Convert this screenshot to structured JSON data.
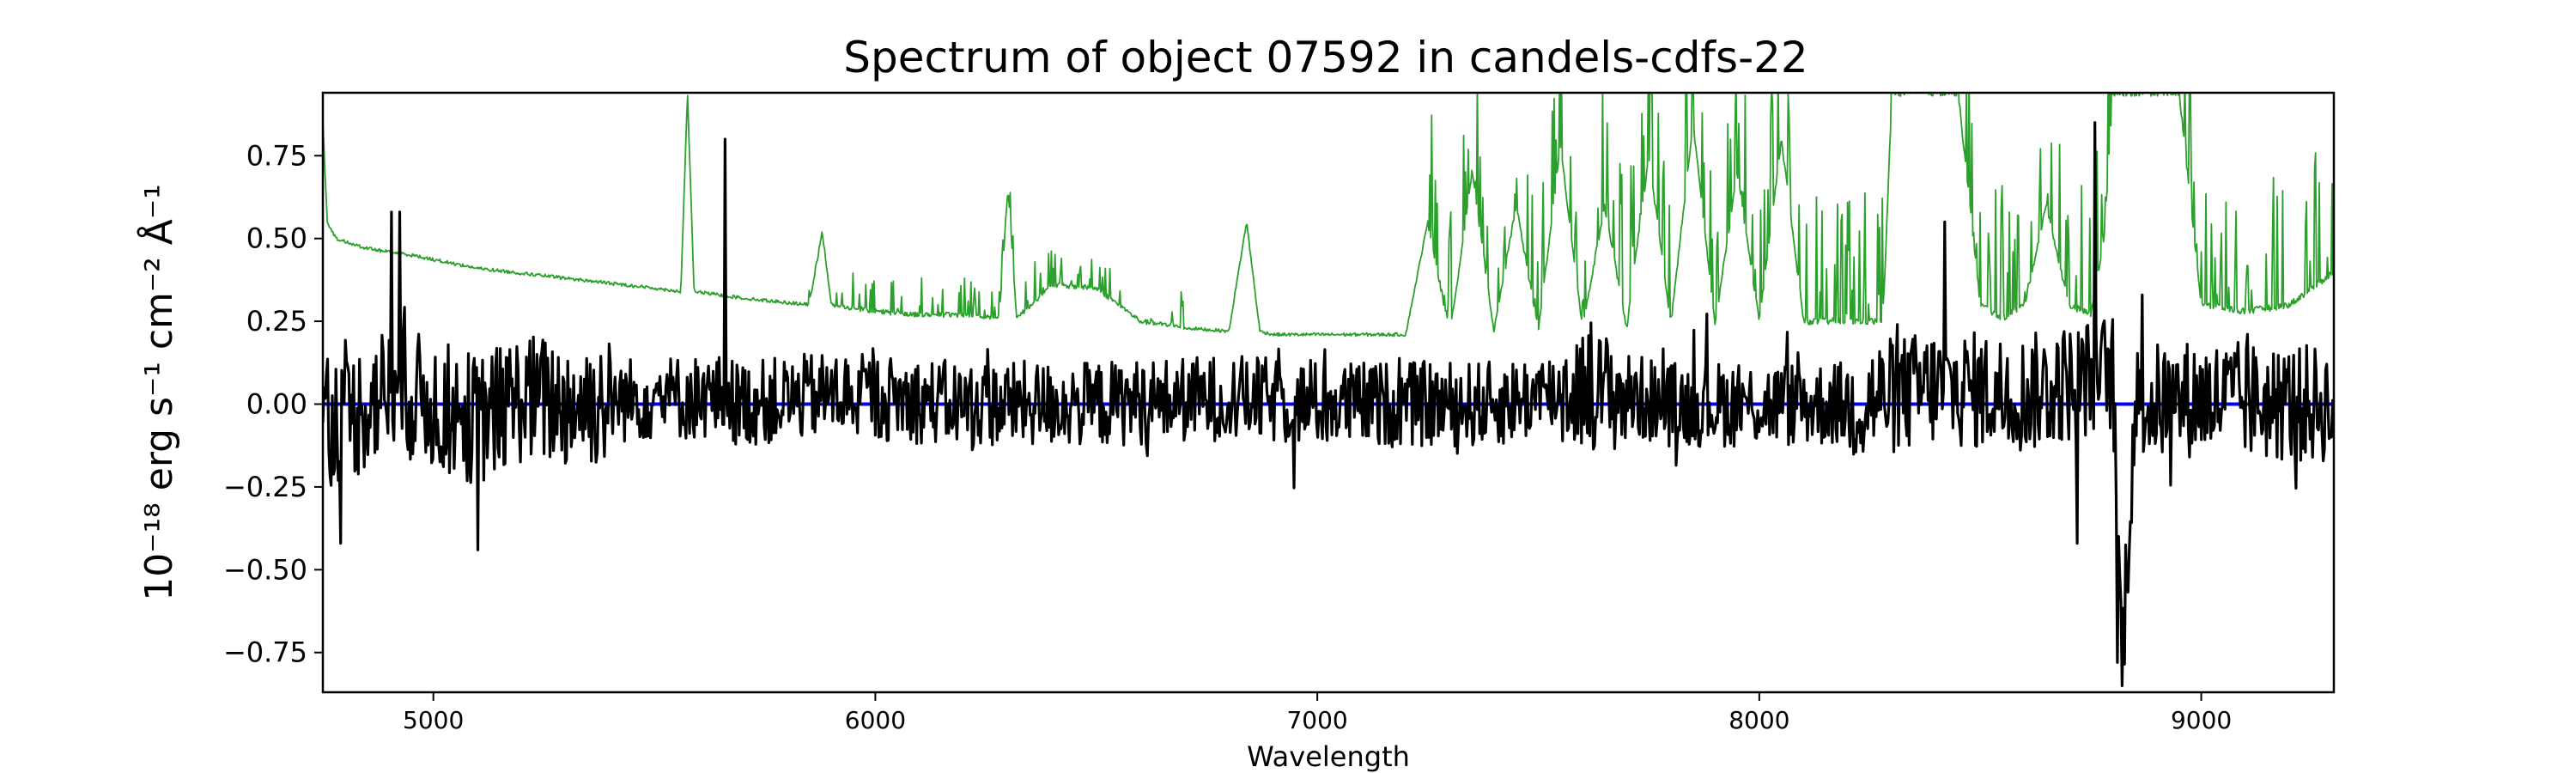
{
  "chart_data": {
    "type": "line",
    "title": "Spectrum of object 07592 in candels-cdfs-22",
    "xlabel": "Wavelength",
    "ylabel": "10⁻¹⁸ erg s⁻¹ cm⁻² Å⁻¹",
    "xlim": [
      4750,
      9300
    ],
    "ylim": [
      -0.87,
      0.94
    ],
    "xticks": [
      5000,
      6000,
      7000,
      8000,
      9000
    ],
    "xtick_labels": [
      "5000",
      "6000",
      "7000",
      "8000",
      "9000"
    ],
    "yticks": [
      -0.75,
      -0.5,
      -0.25,
      0.0,
      0.25,
      0.5,
      0.75
    ],
    "ytick_labels": [
      "−0.75",
      "−0.50",
      "−0.25",
      "0.00",
      "0.25",
      "0.50",
      "0.75"
    ],
    "grid": false,
    "series": [
      {
        "name": "",
        "role": "error",
        "color": "#2ca02c",
        "x": [
          4750,
          4760,
          4780,
          4850,
          4950,
          5100,
          5300,
          5500,
          5560,
          5575,
          5590,
          5700,
          5850,
          5880,
          5900,
          6000,
          6100,
          6200,
          6280,
          6300,
          6320,
          6400,
          6500,
          6600,
          6700,
          6800,
          6840,
          6870,
          6900,
          7000,
          7100,
          7200,
          7250,
          7300,
          7350,
          7400,
          7450,
          7500,
          7550,
          7600,
          7650,
          7700,
          7750,
          7800,
          7850,
          7900,
          7950,
          8000,
          8050,
          8100,
          8200,
          8280,
          8300,
          8350,
          8400,
          8450,
          8500,
          8550,
          8600,
          8650,
          8700,
          8750,
          8780,
          8800,
          8850,
          8900,
          8950,
          9000,
          9100,
          9200,
          9300
        ],
        "values": [
          0.85,
          0.55,
          0.5,
          0.47,
          0.45,
          0.41,
          0.38,
          0.35,
          0.34,
          0.94,
          0.34,
          0.32,
          0.3,
          0.52,
          0.3,
          0.28,
          0.27,
          0.27,
          0.26,
          0.65,
          0.26,
          0.36,
          0.35,
          0.25,
          0.23,
          0.22,
          0.55,
          0.22,
          0.21,
          0.21,
          0.21,
          0.21,
          0.55,
          0.21,
          0.7,
          0.22,
          0.6,
          0.22,
          0.78,
          0.23,
          0.6,
          0.23,
          0.75,
          0.24,
          0.85,
          0.24,
          0.7,
          0.25,
          0.8,
          0.25,
          0.25,
          0.25,
          0.94,
          0.94,
          0.94,
          0.94,
          0.3,
          0.26,
          0.3,
          0.6,
          0.3,
          0.27,
          0.5,
          0.94,
          0.94,
          0.94,
          0.94,
          0.3,
          0.28,
          0.3,
          0.4
        ]
      },
      {
        "name": "",
        "role": "model",
        "color": "#0000ff",
        "x": [
          4750,
          9300
        ],
        "values": [
          0.0,
          0.0
        ]
      },
      {
        "name": "",
        "role": "flux",
        "color": "#000000",
        "generated_noise": true,
        "x": [
          4750,
          4800,
          4900,
          5000,
          5100,
          5200,
          5300,
          5500,
          5650,
          5700,
          5900,
          6200,
          6500,
          6800,
          7000,
          7200,
          7400,
          7600,
          7800,
          8000,
          8200,
          8400,
          8600,
          8800,
          8820,
          8850,
          9000,
          9200,
          9300
        ],
        "values": [
          0.0,
          -0.05,
          0.05,
          0.0,
          -0.05,
          0.02,
          0.0,
          0.02,
          0.02,
          0.0,
          0.03,
          0.0,
          0.0,
          0.02,
          0.0,
          0.0,
          0.0,
          0.05,
          0.0,
          0.0,
          0.0,
          0.05,
          0.03,
          0.1,
          -0.78,
          0.0,
          0.02,
          0.0,
          0.0
        ],
        "peaks": [
          {
            "x": 5660,
            "y": 0.8
          },
          {
            "x": 4905,
            "y": 0.58
          },
          {
            "x": 4925,
            "y": 0.58
          },
          {
            "x": 4790,
            "y": -0.42
          },
          {
            "x": 5100,
            "y": -0.44
          },
          {
            "x": 8760,
            "y": 0.85
          },
          {
            "x": 8810,
            "y": -0.78
          },
          {
            "x": 8420,
            "y": 0.55
          },
          {
            "x": 8720,
            "y": -0.42
          }
        ]
      }
    ]
  }
}
